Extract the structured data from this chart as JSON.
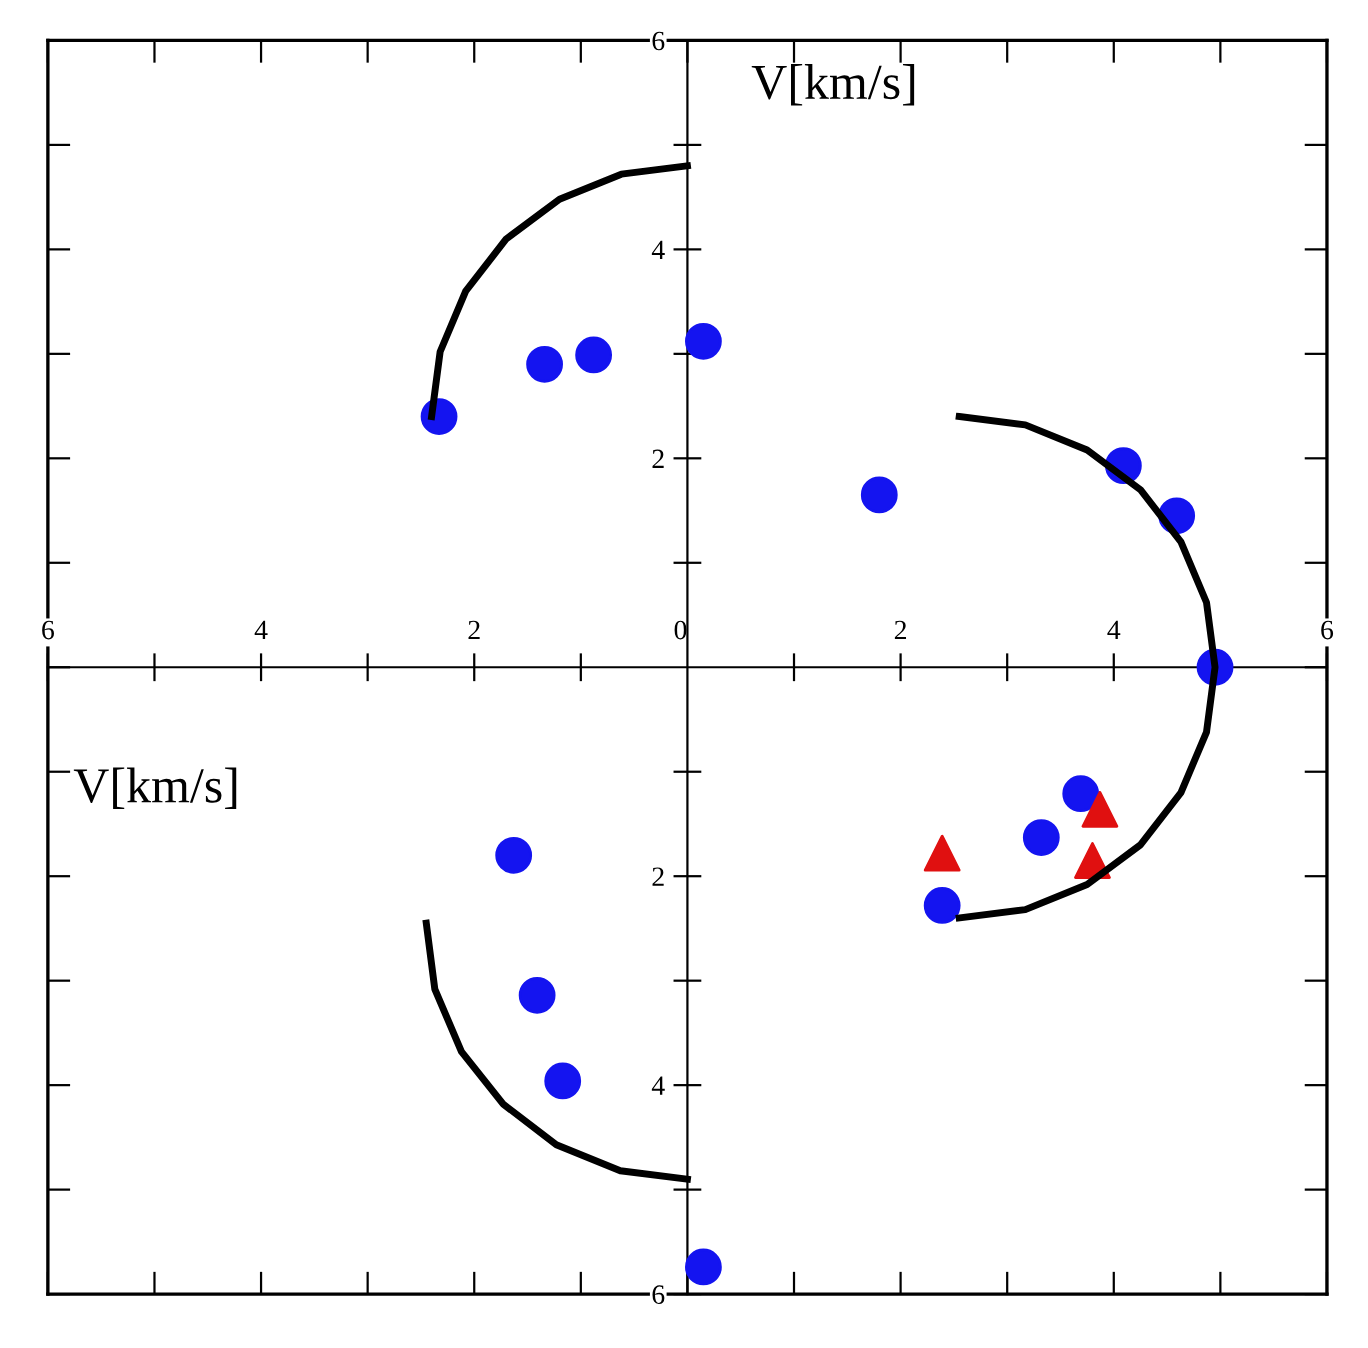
{
  "chart_data": {
    "type": "scatter",
    "xlabel": "V[km/s]",
    "ylabel": "V[km/s]",
    "xlim": [
      -6,
      6
    ],
    "ylim": [
      -6,
      6
    ],
    "xticks": [
      {
        "value": -6,
        "label": "6"
      },
      {
        "value": -5,
        "label": null
      },
      {
        "value": -4,
        "label": "4"
      },
      {
        "value": -3,
        "label": null
      },
      {
        "value": -2,
        "label": "2"
      },
      {
        "value": -1,
        "label": null
      },
      {
        "value": 0,
        "label": "0"
      },
      {
        "value": 1,
        "label": null
      },
      2,
      {
        "value": 3,
        "label": null
      },
      4,
      {
        "value": 5,
        "label": null
      },
      6
    ],
    "yticks": [
      {
        "value": -6,
        "label": "6"
      },
      {
        "value": -5,
        "label": null
      },
      {
        "value": -4,
        "label": "4"
      },
      {
        "value": -3,
        "label": null
      },
      {
        "value": -2,
        "label": "2"
      },
      {
        "value": -1,
        "label": null
      },
      {
        "value": 0,
        "label": null
      },
      {
        "value": 1,
        "label": null
      },
      2,
      {
        "value": 3,
        "label": null
      },
      4,
      {
        "value": 5,
        "label": null
      },
      6
    ],
    "series": [
      {
        "marker": "circle",
        "color": "#1414f0",
        "x": [
          0.15,
          -0.88,
          -1.34,
          -2.33,
          1.8,
          4.09,
          4.59,
          4.95,
          3.69,
          3.32,
          2.39,
          -1.63,
          -1.41,
          -1.17,
          0.15
        ],
        "values": [
          3.12,
          2.99,
          2.9,
          2.4,
          1.65,
          1.93,
          1.45,
          0,
          -1.21,
          -1.63,
          -2.28,
          -1.8,
          -3.14,
          -3.96,
          -5.74
        ]
      },
      {
        "marker": "triangle",
        "color": "#e01010",
        "x": [
          2.39,
          3.87,
          3.8
        ],
        "values": [
          -1.78,
          -1.36,
          -1.85
        ]
      },
      {
        "type": "line",
        "marker": "none",
        "color": "#000000",
        "x": [
          -2.4,
          -2.32,
          -2.08,
          -1.7,
          -1.2,
          -0.62,
          0
        ],
        "values": [
          2.4,
          3.02,
          3.6,
          4.1,
          4.48,
          4.72,
          4.8
        ]
      },
      {
        "type": "line",
        "marker": "none",
        "color": "#000000",
        "x": [
          2.55,
          3.17,
          3.75,
          4.25,
          4.63,
          4.87,
          4.95,
          4.87,
          4.63,
          4.25,
          3.75,
          3.17,
          2.55
        ],
        "values": [
          2.4,
          2.32,
          2.08,
          1.7,
          1.2,
          0.62,
          0,
          -0.62,
          -1.2,
          -1.7,
          -2.08,
          -2.32,
          -2.4
        ]
      },
      {
        "type": "line",
        "marker": "none",
        "color": "#000000",
        "x": [
          -2.45,
          -2.37,
          -2.12,
          -1.73,
          -1.23,
          -0.63,
          0
        ],
        "values": [
          -2.45,
          -3.08,
          -3.68,
          -4.18,
          -4.57,
          -4.82,
          -4.9
        ]
      }
    ]
  }
}
